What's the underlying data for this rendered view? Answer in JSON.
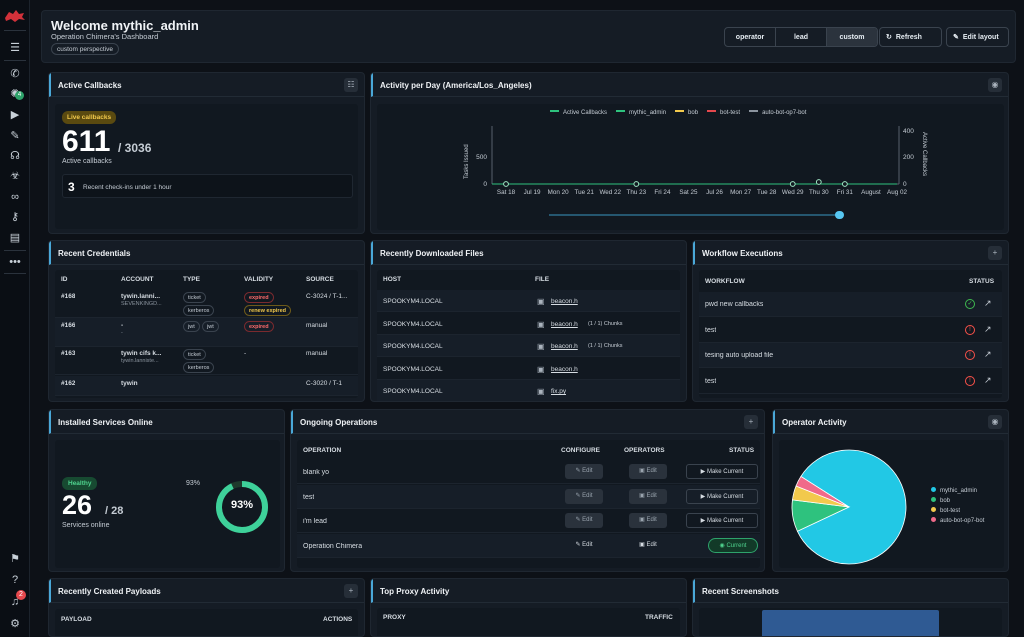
{
  "header": {
    "title": "Welcome mythic_admin",
    "subtitle": "Operation Chimera's Dashboard",
    "perspective": "custom perspective",
    "segments": [
      "operator",
      "lead",
      "custom"
    ],
    "refresh_label": "Refresh",
    "edit_label": "Edit layout"
  },
  "sidebar": {
    "notification_count": "2",
    "callback_badge": "4"
  },
  "callbacks": {
    "title": "Active Callbacks",
    "badge": "Live callbacks",
    "count": "611",
    "total": "/ 3036",
    "label": "Active callbacks",
    "checkins_count": "3",
    "checkins_label": "Recent check-ins under 1 hour"
  },
  "activity": {
    "title": "Activity per Day (America/Los_Angeles)",
    "legend": [
      "Active Callbacks",
      "mythic_admin",
      "bob",
      "bot-test",
      "auto-bot-op7-bot"
    ],
    "legend_colors": [
      "#2ec27e",
      "#2ec27e",
      "#f2c94c",
      "#e5484d",
      "#8b949e"
    ],
    "y_left_label": "Tasks Issued",
    "y_right_label": "Active Callbacks",
    "y_left_ticks": [
      "500",
      "0"
    ],
    "y_right_ticks": [
      "400",
      "200",
      "0"
    ],
    "x_ticks": [
      "Sat 18",
      "Jul 19",
      "Mon 20",
      "Tue 21",
      "Wed 22",
      "Thu 23",
      "Fri 24",
      "Sat 25",
      "Jul 26",
      "Mon 27",
      "Tue 28",
      "Wed 29",
      "Thu 30",
      "Fri 31",
      "August",
      "Aug 02"
    ]
  },
  "credentials": {
    "title": "Recent Credentials",
    "headers": [
      "ID",
      "ACCOUNT",
      "TYPE",
      "VALIDITY",
      "SOURCE"
    ],
    "rows": [
      {
        "id": "#168",
        "account": "tywin.lanni...",
        "sub": "SEVENKINGD...",
        "types": [
          "ticket",
          "kerberos"
        ],
        "validity": [
          "expired",
          "renew expired"
        ],
        "source": "C-3024 / T-1..."
      },
      {
        "id": "#166",
        "account": "-",
        "sub": "-",
        "types": [
          "jwt",
          "jwt"
        ],
        "validity": [
          "expired"
        ],
        "source": "manual"
      },
      {
        "id": "#163",
        "account": "tywin cifs k...",
        "sub": "tywin.lanniste...",
        "types": [
          "ticket",
          "kerberos"
        ],
        "validity": [
          "-"
        ],
        "source": "manual"
      },
      {
        "id": "#162",
        "account": "tywin",
        "sub": "",
        "types": [],
        "validity": [],
        "source": "C-3020 / T-1"
      }
    ]
  },
  "downloads": {
    "title": "Recently Downloaded Files",
    "headers": [
      "HOST",
      "FILE"
    ],
    "rows": [
      {
        "host": "SPOOKYM4.LOCAL",
        "file": "beacon.h",
        "chunks": ""
      },
      {
        "host": "SPOOKYM4.LOCAL",
        "file": "beacon.h",
        "chunks": "(1 / 1) Chunks"
      },
      {
        "host": "SPOOKYM4.LOCAL",
        "file": "beacon.h",
        "chunks": "(1 / 1) Chunks"
      },
      {
        "host": "SPOOKYM4.LOCAL",
        "file": "beacon.h",
        "chunks": ""
      },
      {
        "host": "SPOOKYM4.LOCAL",
        "file": "fix.py",
        "chunks": ""
      }
    ]
  },
  "workflows": {
    "title": "Workflow Executions",
    "headers": [
      "WORKFLOW",
      "STATUS"
    ],
    "rows": [
      {
        "name": "pwd new callbacks",
        "status": "success"
      },
      {
        "name": "test",
        "status": "error"
      },
      {
        "name": "tesing auto upload file",
        "status": "error"
      },
      {
        "name": "test",
        "status": "error"
      }
    ]
  },
  "services": {
    "title": "Installed Services Online",
    "badge": "Healthy",
    "count": "26",
    "total": "/ 28",
    "label": "Services online",
    "percent_label": "93%",
    "percent_value": 0.93
  },
  "operations": {
    "title": "Ongoing Operations",
    "headers": [
      "OPERATION",
      "CONFIGURE",
      "OPERATORS",
      "STATUS"
    ],
    "edit_label": "Edit",
    "make_current": "Make Current",
    "current_label": "Current",
    "rows": [
      {
        "name": "blank yo",
        "current": false
      },
      {
        "name": "test",
        "current": false
      },
      {
        "name": "i'm lead",
        "current": false
      },
      {
        "name": "Operation Chimera",
        "current": true
      }
    ]
  },
  "operator_activity": {
    "title": "Operator Activity",
    "chart_data": {
      "type": "pie",
      "categories": [
        "mythic_admin",
        "bob",
        "bot-test",
        "auto-bot-op7-bot"
      ],
      "values": [
        84,
        9,
        4,
        3
      ],
      "colors": [
        "#22c8e5",
        "#2ec27e",
        "#f2c94c",
        "#f06a8a"
      ],
      "legend": "right"
    }
  },
  "payloads": {
    "title": "Recently Created Payloads",
    "headers": [
      "PAYLOAD",
      "ACTIONS"
    ]
  },
  "proxy": {
    "title": "Top Proxy Activity",
    "headers": [
      "PROXY",
      "TRAFFIC"
    ]
  },
  "screenshots": {
    "title": "Recent Screenshots"
  }
}
